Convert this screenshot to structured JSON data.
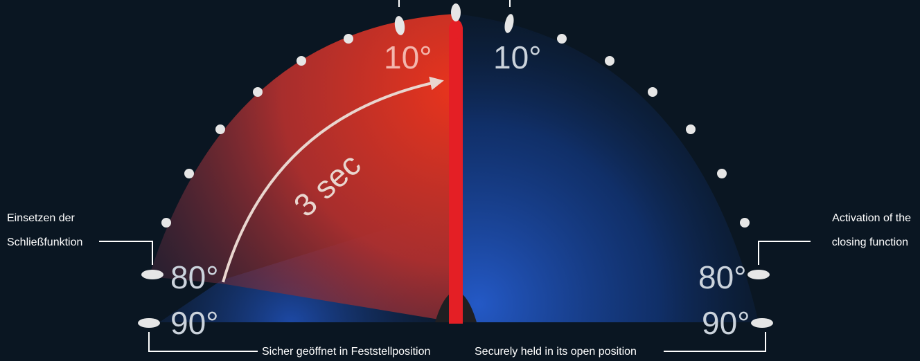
{
  "diagram": {
    "center_degree_labels": {
      "left": "10°",
      "right": "10°"
    },
    "side_degree_labels": {
      "left_80": "80°",
      "left_90": "90°",
      "right_80": "80°",
      "right_90": "90°"
    },
    "timer_label": "3 sec",
    "annotations": {
      "closing_de_line1": "Einsetzen der",
      "closing_de_line2": "Schließfunktion",
      "closing_en_line1": "Activation of the",
      "closing_en_line2": "closing function",
      "held_de": "Sicher geöffnet in Feststellposition",
      "held_en": "Securely held in its open position"
    },
    "colors": {
      "background": "#0a1622",
      "door": "#e41f25",
      "closing_zone": "#d8361f",
      "open_zone": "#1c4fb8",
      "markers": "#e6e6e6",
      "label_on_red": "#f3b6ad",
      "label_on_dark": "#cbd3dc"
    }
  }
}
